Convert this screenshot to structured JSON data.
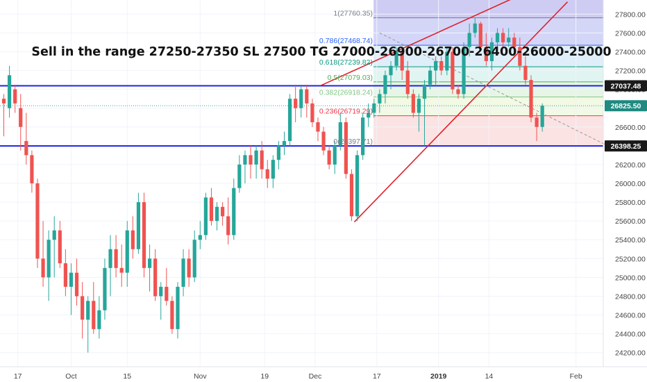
{
  "chart_data": {
    "type": "candlestick",
    "annotation": "Sell in the range 27250-27350 SL 27500 TG 27000-26900-26700-26400-26000-25000",
    "ylim": [
      24050,
      27950
    ],
    "y_ticks": [
      24200,
      24400,
      24600,
      24800,
      25000,
      25200,
      25400,
      25600,
      25800,
      26000,
      26200,
      26400,
      26600,
      26800,
      27000,
      27200,
      27400,
      27600,
      27800
    ],
    "y_tick_labels": [
      "24200.00",
      "24400.00",
      "24600.00",
      "24800.00",
      "25000.00",
      "25200.00",
      "25400.00",
      "25600.00",
      "25800.00",
      "26000.00",
      "26200.00",
      "26400.00",
      "26600.00",
      "26800.00",
      "27000.00",
      "27200.00",
      "27400.00",
      "27600.00",
      "27800.00"
    ],
    "x_labels": [
      {
        "label": "17",
        "bar": 2.5,
        "bold": false
      },
      {
        "label": "Oct",
        "bar": 12,
        "bold": false
      },
      {
        "label": "15",
        "bar": 22,
        "bold": false
      },
      {
        "label": "Nov",
        "bar": 35,
        "bold": false
      },
      {
        "label": "19",
        "bar": 46.5,
        "bold": false
      },
      {
        "label": "Dec",
        "bar": 55.5,
        "bold": false
      },
      {
        "label": "17",
        "bar": 66.5,
        "bold": false
      },
      {
        "label": "2019",
        "bar": 77.5,
        "bold": true
      },
      {
        "label": "14",
        "bar": 86.5,
        "bold": false
      },
      {
        "label": "Feb",
        "bar": 102,
        "bold": false
      }
    ],
    "price_tags": [
      {
        "label": "27037.48",
        "value": 27037.48,
        "color": "#1a1a1a"
      },
      {
        "label": "26825.50",
        "value": 26825.5,
        "color": "#1f8a80"
      },
      {
        "label": "26398.25",
        "value": 26398.25,
        "color": "#1a1a1a"
      }
    ],
    "horizontal_lines": [
      27037.48,
      26398.25
    ],
    "fibonacci": {
      "levels": [
        {
          "ratio": 1,
          "label": "1(27760.35)",
          "value": 27760.35,
          "color": "#787b86",
          "fill": "#c5c8f5"
        },
        {
          "ratio": 0.786,
          "label": "0.786(27468.74)",
          "value": 27468.74,
          "color": "#2962ff",
          "fill": "#d4e8f7"
        },
        {
          "ratio": 0.618,
          "label": "0.618(27239.82)",
          "value": 27239.82,
          "color": "#089981",
          "fill": "#d6f1ec"
        },
        {
          "ratio": 0.5,
          "label": "0.5(27079.03)",
          "value": 27079.03,
          "color": "#4caf50",
          "fill": "#dff2df"
        },
        {
          "ratio": 0.382,
          "label": "0.382(26918.24)",
          "value": 26918.24,
          "color": "#81c784",
          "fill": "#eef7db"
        },
        {
          "ratio": 0.236,
          "label": "0.236(26719.29)",
          "value": 26719.29,
          "color": "#f23645",
          "fill": "#f9d9d9"
        },
        {
          "ratio": 0,
          "label": "0(26397.71)",
          "value": 26397.71,
          "color": "#787b86",
          "fill": "#f5d0d0"
        }
      ]
    },
    "trend_lines": [
      {
        "from_bar": 62.5,
        "from_value": 25590,
        "to_bar": 100.5,
        "to_value": 27930,
        "color": "#e0202a"
      },
      {
        "from_bar": 56.5,
        "from_value": 27040,
        "to_bar": 90.5,
        "to_value": 27960,
        "color": "#e0202a"
      }
    ],
    "dashed_line": {
      "from_bar": 67,
      "from_value": 27600,
      "to_bar": 108,
      "to_value": 26390,
      "color": "#999999"
    },
    "ohlc": [
      [
        26900,
        26950,
        26500,
        26850
      ],
      [
        26800,
        27250,
        26700,
        27150
      ],
      [
        27000,
        27050,
        26750,
        26850
      ],
      [
        26800,
        26950,
        26350,
        26600
      ],
      [
        26450,
        26750,
        26200,
        26300
      ],
      [
        26300,
        26350,
        25900,
        26000
      ],
      [
        26000,
        26050,
        25100,
        25200
      ],
      [
        25200,
        25600,
        24900,
        25000
      ],
      [
        25000,
        25500,
        24750,
        25400
      ],
      [
        25400,
        25650,
        25000,
        25500
      ],
      [
        25500,
        25600,
        25100,
        25150
      ],
      [
        25150,
        25300,
        24800,
        24900
      ],
      [
        24900,
        25150,
        24600,
        25050
      ],
      [
        25050,
        25200,
        24700,
        24800
      ],
      [
        24800,
        24950,
        24350,
        24550
      ],
      [
        24550,
        24800,
        24200,
        24750
      ],
      [
        24750,
        24950,
        24400,
        24450
      ],
      [
        24450,
        24800,
        24350,
        24650
      ],
      [
        24650,
        25200,
        24550,
        25100
      ],
      [
        25100,
        25450,
        24800,
        25300
      ],
      [
        25300,
        25450,
        25000,
        25100
      ],
      [
        25100,
        25350,
        24900,
        25050
      ],
      [
        25050,
        25600,
        24900,
        25500
      ],
      [
        25500,
        25650,
        25200,
        25300
      ],
      [
        25300,
        25900,
        25250,
        25800
      ],
      [
        25800,
        25900,
        25000,
        25100
      ],
      [
        25100,
        25350,
        24850,
        25200
      ],
      [
        25200,
        25300,
        24750,
        24800
      ],
      [
        24800,
        24950,
        24550,
        24900
      ],
      [
        24900,
        25100,
        24700,
        24750
      ],
      [
        24750,
        24800,
        24400,
        24450
      ],
      [
        24450,
        24950,
        24350,
        24900
      ],
      [
        24900,
        25300,
        24800,
        25200
      ],
      [
        25200,
        25300,
        24900,
        25000
      ],
      [
        25000,
        25500,
        24950,
        25400
      ],
      [
        25400,
        25600,
        25300,
        25450
      ],
      [
        25450,
        25900,
        25400,
        25850
      ],
      [
        25850,
        25950,
        25550,
        25600
      ],
      [
        25600,
        25800,
        25500,
        25750
      ],
      [
        25750,
        25800,
        25550,
        25650
      ],
      [
        25650,
        25850,
        25350,
        25450
      ],
      [
        25450,
        26050,
        25400,
        25950
      ],
      [
        25950,
        26300,
        25900,
        26200
      ],
      [
        26200,
        26350,
        26000,
        26300
      ],
      [
        26300,
        26400,
        26050,
        26200
      ],
      [
        26200,
        26400,
        26050,
        26350
      ],
      [
        26350,
        26450,
        26050,
        26150
      ],
      [
        26150,
        26250,
        25950,
        26050
      ],
      [
        26050,
        26300,
        25950,
        26250
      ],
      [
        26250,
        26450,
        26150,
        26400
      ],
      [
        26400,
        26550,
        26300,
        26450
      ],
      [
        26450,
        26950,
        26400,
        26900
      ],
      [
        26900,
        27050,
        26650,
        26800
      ],
      [
        26800,
        27050,
        26700,
        27000
      ],
      [
        27000,
        27050,
        26700,
        26850
      ],
      [
        26850,
        26900,
        26600,
        26650
      ],
      [
        26650,
        26700,
        26450,
        26550
      ],
      [
        26550,
        26600,
        26300,
        26350
      ],
      [
        26350,
        26400,
        26150,
        26200
      ],
      [
        26200,
        26450,
        26100,
        26400
      ],
      [
        26400,
        26750,
        26350,
        26650
      ],
      [
        26650,
        26700,
        26050,
        26100
      ],
      [
        26100,
        26150,
        25600,
        25650
      ],
      [
        25650,
        26350,
        25600,
        26300
      ],
      [
        26300,
        26750,
        26250,
        26700
      ],
      [
        26700,
        26850,
        26600,
        26750
      ],
      [
        26750,
        26900,
        26700,
        26850
      ],
      [
        26850,
        27000,
        26750,
        26950
      ],
      [
        26950,
        27200,
        26850,
        27150
      ],
      [
        27150,
        27300,
        27000,
        27250
      ],
      [
        27250,
        27450,
        27200,
        27400
      ],
      [
        27400,
        27450,
        27100,
        27200
      ],
      [
        27200,
        27300,
        26900,
        26950
      ],
      [
        26950,
        27000,
        26700,
        26750
      ],
      [
        26750,
        26950,
        26550,
        26900
      ],
      [
        26900,
        27100,
        26400,
        27050
      ],
      [
        27050,
        27250,
        27000,
        27200
      ],
      [
        27200,
        27350,
        27050,
        27300
      ],
      [
        27300,
        27350,
        27150,
        27200
      ],
      [
        27200,
        27450,
        27150,
        27400
      ],
      [
        27400,
        27450,
        26950,
        27000
      ],
      [
        27000,
        27050,
        26900,
        26950
      ],
      [
        26950,
        27500,
        26900,
        27450
      ],
      [
        27450,
        27700,
        27350,
        27600
      ],
      [
        27600,
        27760,
        27550,
        27700
      ],
      [
        27700,
        27720,
        27400,
        27450
      ],
      [
        27450,
        27600,
        27250,
        27300
      ],
      [
        27300,
        27550,
        27200,
        27500
      ],
      [
        27500,
        27650,
        27450,
        27600
      ],
      [
        27600,
        27650,
        27450,
        27500
      ],
      [
        27500,
        27650,
        27450,
        27550
      ],
      [
        27550,
        27600,
        27350,
        27450
      ],
      [
        27450,
        27550,
        27200,
        27250
      ],
      [
        27250,
        27350,
        27050,
        27100
      ],
      [
        27100,
        27150,
        26650,
        26700
      ],
      [
        26700,
        26750,
        26450,
        26600
      ],
      [
        26600,
        26850,
        26550,
        26825.5
      ]
    ]
  }
}
